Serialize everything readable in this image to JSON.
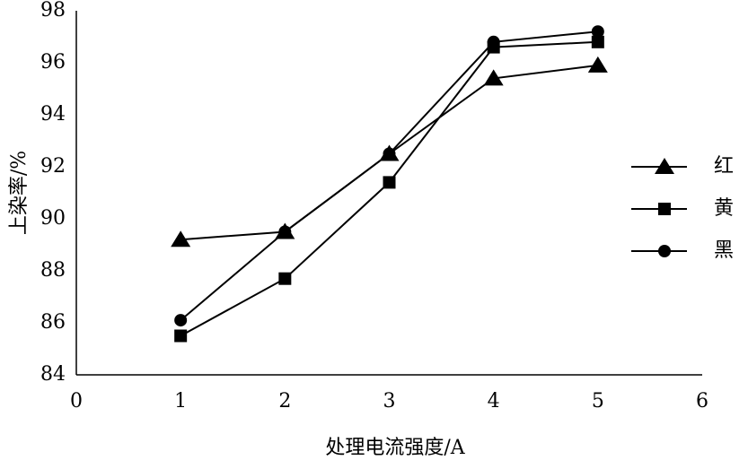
{
  "chart_data": {
    "type": "line",
    "x_label": "处理电流强度/A",
    "y_label": "上染率/%",
    "xlim": [
      0,
      6
    ],
    "xticks": [
      0,
      1,
      2,
      3,
      4,
      5,
      6
    ],
    "ylim": [
      84,
      98
    ],
    "yticks": [
      84,
      86,
      88,
      90,
      92,
      94,
      96,
      98
    ],
    "grid": false,
    "legend": "right",
    "x": [
      1,
      2,
      3,
      4,
      5
    ],
    "series": [
      {
        "name": "红",
        "color": "#000000",
        "marker": "triangle",
        "values": [
          89.2,
          89.5,
          92.5,
          95.4,
          95.9
        ]
      },
      {
        "name": "黄",
        "color": "#000000",
        "marker": "square",
        "values": [
          85.5,
          87.7,
          91.4,
          96.6,
          96.8
        ]
      },
      {
        "name": "黑",
        "color": "#000000",
        "marker": "circle",
        "values": [
          86.1,
          89.5,
          92.5,
          96.8,
          97.2
        ]
      }
    ]
  }
}
